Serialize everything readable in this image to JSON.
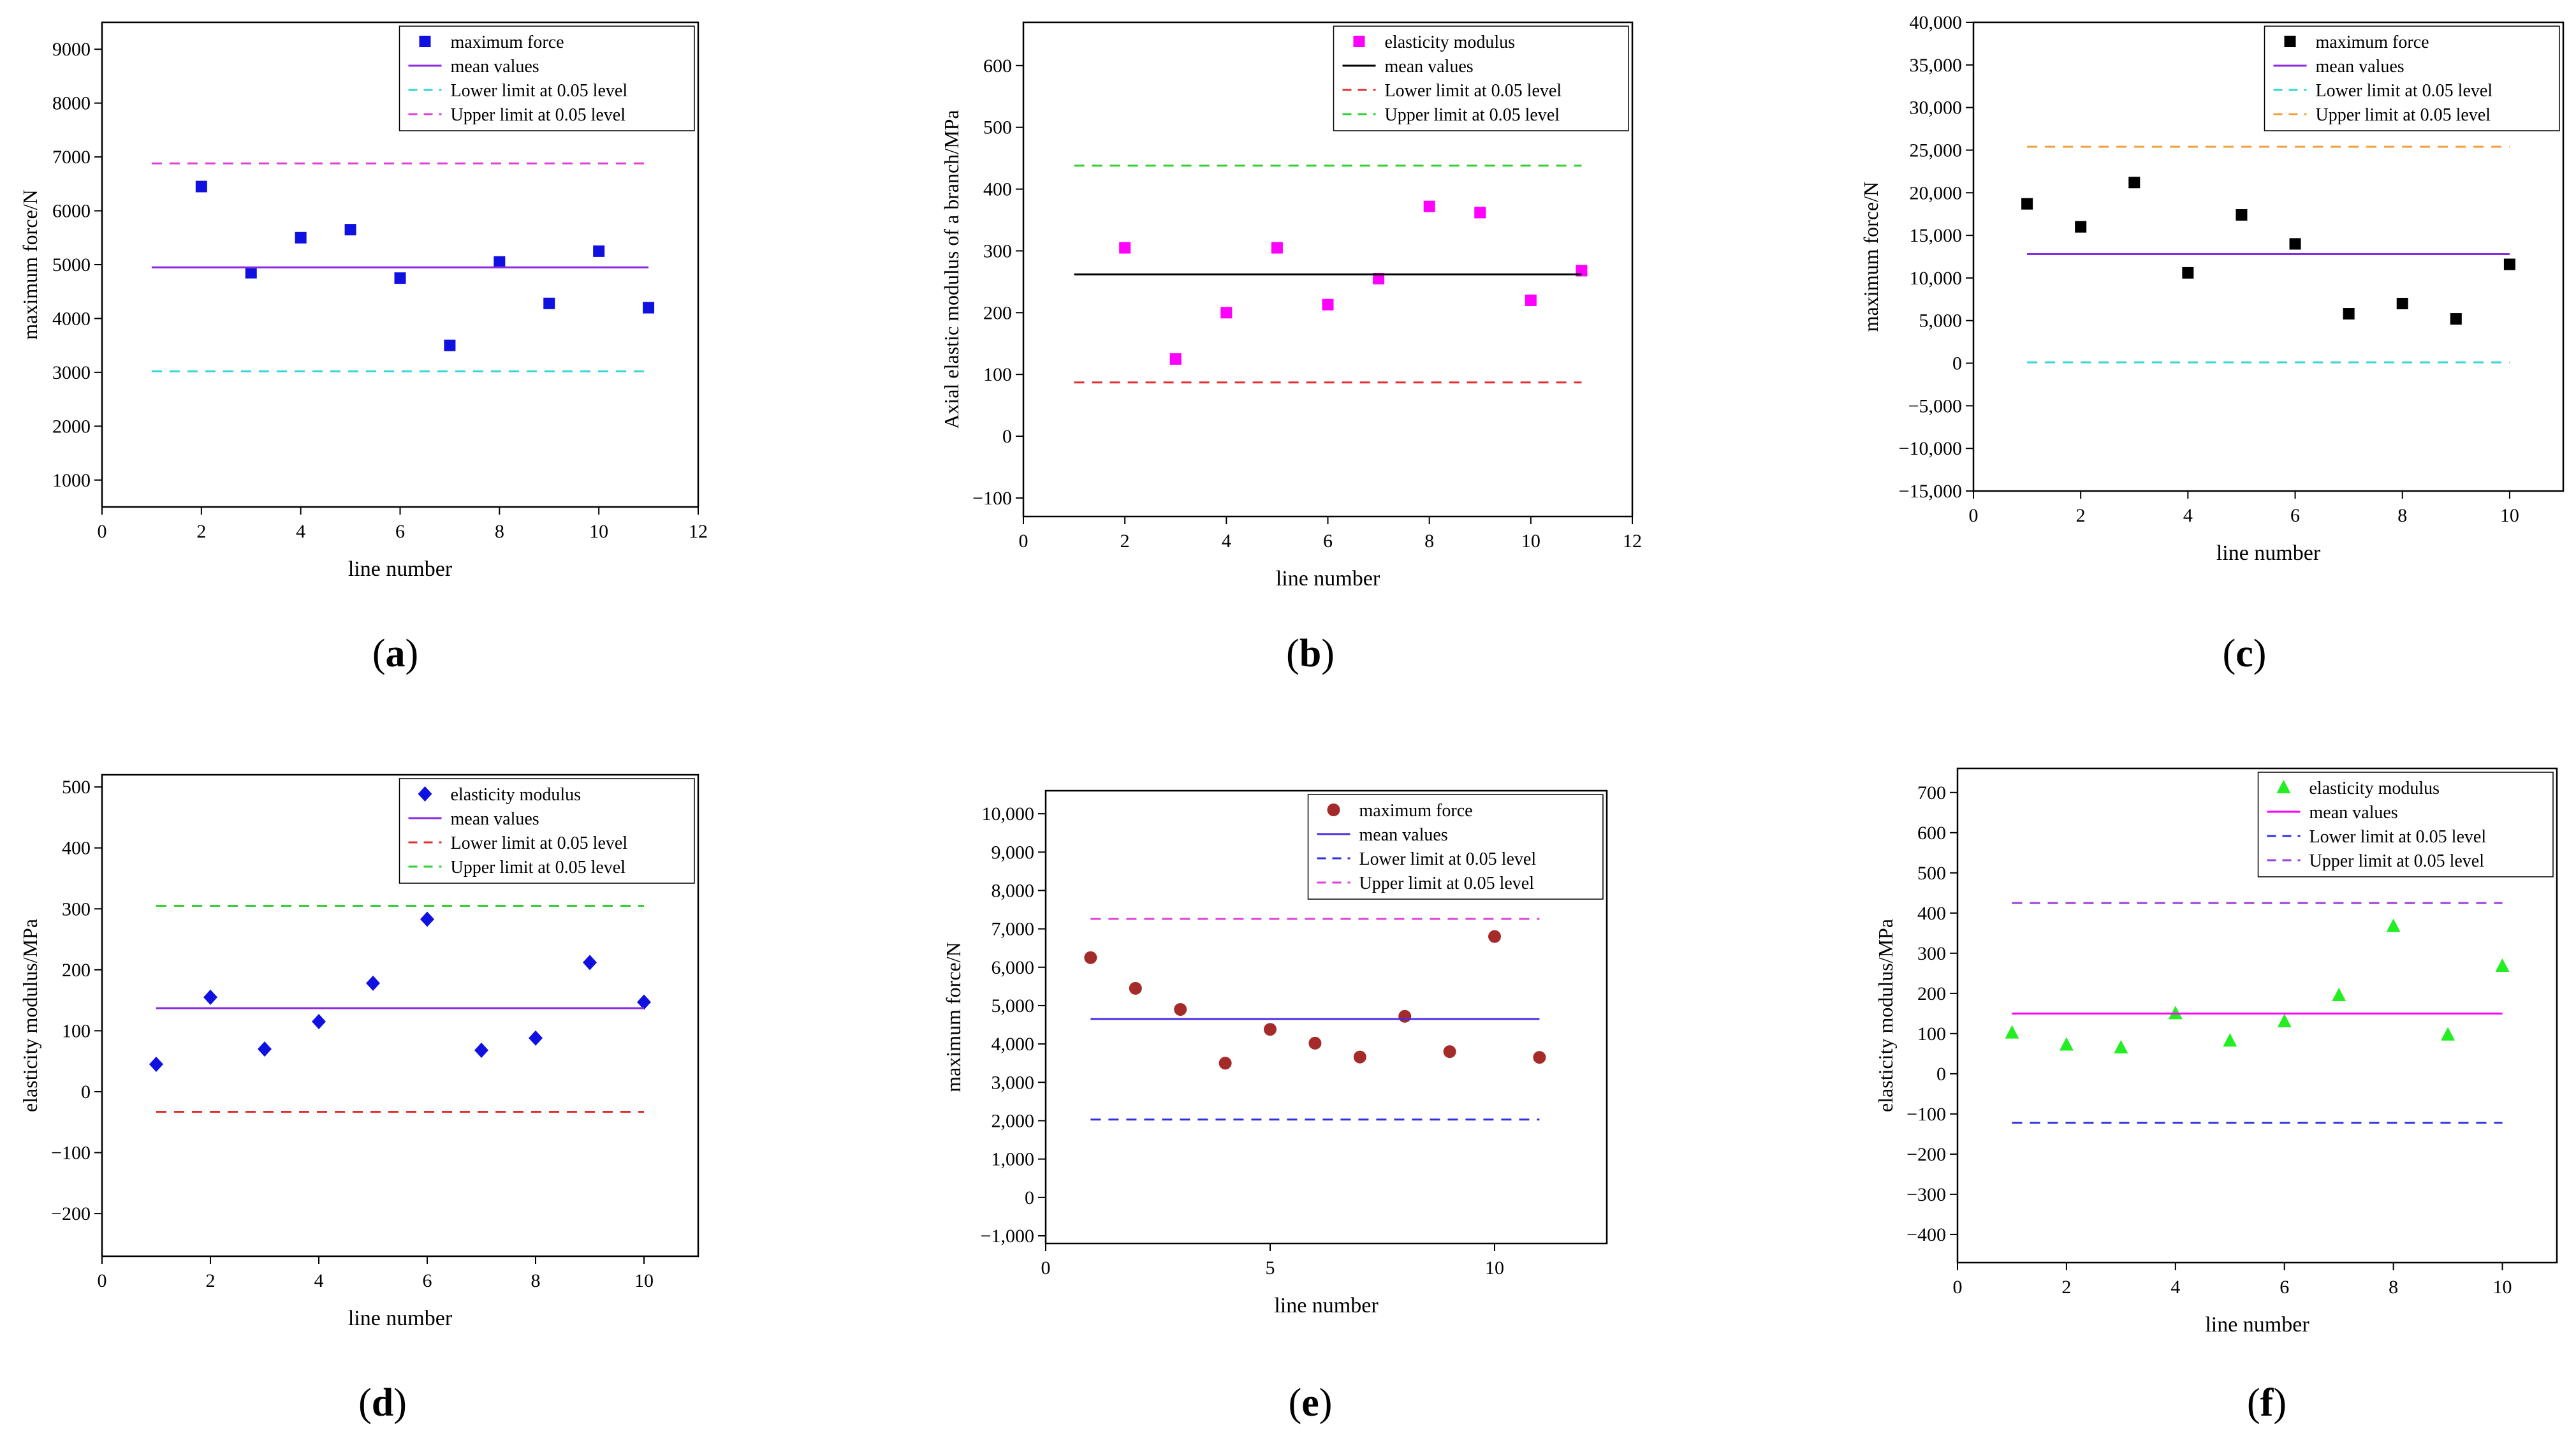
{
  "chart_data": [
    {
      "id": "a",
      "type": "scatter",
      "panel_label": "a",
      "xlabel": "line number",
      "ylabel": "maximum force/N",
      "xlim": [
        0,
        12
      ],
      "ylim": [
        500,
        9500
      ],
      "xticks": [
        0,
        2,
        4,
        6,
        8,
        10,
        12
      ],
      "yticks": [
        1000,
        2000,
        3000,
        4000,
        5000,
        6000,
        7000,
        8000,
        9000
      ],
      "tick_format": "plain",
      "legend_position": "top-right",
      "series": [
        {
          "name": "maximum force",
          "kind": "points",
          "marker": "square",
          "color": "#1010e0",
          "x": [
            2,
            3,
            4,
            5,
            6,
            7,
            8,
            9,
            10,
            11
          ],
          "y": [
            6450,
            4850,
            5500,
            5650,
            4750,
            3500,
            5050,
            4280,
            5250,
            4200
          ]
        },
        {
          "name": "mean values",
          "kind": "hline",
          "style": "solid",
          "color": "#8a2be2",
          "y": 4950,
          "x_range": [
            1,
            11
          ]
        },
        {
          "name": "Lower limit at 0.05 level",
          "kind": "hline",
          "style": "dashed",
          "color": "#33d6d6",
          "y": 3020,
          "x_range": [
            1,
            11
          ]
        },
        {
          "name": "Upper limit at 0.05 level",
          "kind": "hline",
          "style": "dashed",
          "color": "#e040d8",
          "y": 6880,
          "x_range": [
            1,
            11
          ]
        }
      ]
    },
    {
      "id": "b",
      "type": "scatter",
      "panel_label": "b",
      "xlabel": "line number",
      "ylabel": "Axial elastic modulus of a branch/MPa",
      "xlim": [
        0,
        12
      ],
      "ylim": [
        -130,
        670
      ],
      "xticks": [
        0,
        2,
        4,
        6,
        8,
        10,
        12
      ],
      "yticks": [
        -100,
        0,
        100,
        200,
        300,
        400,
        500,
        600
      ],
      "tick_format": "plain",
      "legend_position": "top-right",
      "series": [
        {
          "name": "elasticity modulus",
          "kind": "points",
          "marker": "square",
          "color": "#ff00ff",
          "x": [
            2,
            3,
            4,
            5,
            6,
            7,
            8,
            9,
            10,
            11
          ],
          "y": [
            305,
            125,
            200,
            305,
            213,
            255,
            372,
            362,
            220,
            268
          ]
        },
        {
          "name": "mean values",
          "kind": "hline",
          "style": "solid",
          "color": "#000000",
          "y": 262,
          "x_range": [
            1,
            11
          ]
        },
        {
          "name": "Lower limit at 0.05 level",
          "kind": "hline",
          "style": "dashed",
          "color": "#e03030",
          "y": 87,
          "x_range": [
            1,
            11
          ]
        },
        {
          "name": "Upper limit at 0.05 level",
          "kind": "hline",
          "style": "dashed",
          "color": "#30d030",
          "y": 438,
          "x_range": [
            1,
            11
          ]
        }
      ]
    },
    {
      "id": "c",
      "type": "scatter",
      "panel_label": "c",
      "xlabel": "line number",
      "ylabel": "maximum force/N",
      "xlim": [
        0,
        11
      ],
      "ylim": [
        -15000,
        40000
      ],
      "xticks": [
        0,
        2,
        4,
        6,
        8,
        10
      ],
      "yticks": [
        -15000,
        -10000,
        -5000,
        0,
        5000,
        10000,
        15000,
        20000,
        25000,
        30000,
        35000,
        40000
      ],
      "tick_format": "comma",
      "legend_position": "top-right",
      "series": [
        {
          "name": "maximum force",
          "kind": "points",
          "marker": "square",
          "color": "#000000",
          "x": [
            1,
            2,
            3,
            4,
            5,
            6,
            7,
            8,
            9,
            10
          ],
          "y": [
            18700,
            16000,
            21200,
            10600,
            17400,
            14000,
            5800,
            7000,
            5200,
            11600
          ]
        },
        {
          "name": "mean values",
          "kind": "hline",
          "style": "solid",
          "color": "#8a2be2",
          "y": 12800,
          "x_range": [
            1,
            10
          ]
        },
        {
          "name": "Lower limit at 0.05 level",
          "kind": "hline",
          "style": "dashed",
          "color": "#33d6d6",
          "y": 100,
          "x_range": [
            1,
            10
          ]
        },
        {
          "name": "Upper limit at 0.05 level",
          "kind": "hline",
          "style": "dashed",
          "color": "#f0a040",
          "y": 25400,
          "x_range": [
            1,
            10
          ]
        }
      ]
    },
    {
      "id": "d",
      "type": "scatter",
      "panel_label": "d",
      "xlabel": "line number",
      "ylabel": "elasticity modulus/MPa",
      "xlim": [
        0,
        11
      ],
      "ylim": [
        -270,
        520
      ],
      "xticks": [
        0,
        2,
        4,
        6,
        8,
        10
      ],
      "yticks": [
        -200,
        -100,
        0,
        100,
        200,
        300,
        400,
        500
      ],
      "tick_format": "plain",
      "legend_position": "top-right",
      "series": [
        {
          "name": "elasticity modulus",
          "kind": "points",
          "marker": "diamond",
          "color": "#1010e0",
          "x": [
            1,
            2,
            3,
            4,
            5,
            6,
            7,
            8,
            9,
            10
          ],
          "y": [
            45,
            155,
            70,
            115,
            178,
            283,
            68,
            88,
            212,
            147
          ]
        },
        {
          "name": "mean values",
          "kind": "hline",
          "style": "solid",
          "color": "#8a2be2",
          "y": 137,
          "x_range": [
            1,
            10
          ]
        },
        {
          "name": "Lower limit at 0.05 level",
          "kind": "hline",
          "style": "dashed",
          "color": "#e03030",
          "y": -33,
          "x_range": [
            1,
            10
          ]
        },
        {
          "name": "Upper limit at 0.05 level",
          "kind": "hline",
          "style": "dashed",
          "color": "#30d030",
          "y": 305,
          "x_range": [
            1,
            10
          ]
        }
      ]
    },
    {
      "id": "e",
      "type": "scatter",
      "panel_label": "e",
      "xlabel": "line number",
      "ylabel": "maximum force/N",
      "xlim": [
        0,
        12.5
      ],
      "ylim": [
        -1200,
        10600
      ],
      "xticks": [
        0,
        5,
        10
      ],
      "yticks": [
        -1000,
        0,
        1000,
        2000,
        3000,
        4000,
        5000,
        6000,
        7000,
        8000,
        9000,
        10000
      ],
      "tick_format": "comma",
      "legend_position": "top-right",
      "series": [
        {
          "name": "maximum force",
          "kind": "points",
          "marker": "circle",
          "color": "#a52a2a",
          "x": [
            1,
            2,
            3,
            4,
            5,
            6,
            7,
            8,
            9,
            10,
            11
          ],
          "y": [
            6250,
            5450,
            4900,
            3500,
            4380,
            4020,
            3660,
            4720,
            3800,
            6800,
            3650
          ]
        },
        {
          "name": "mean values",
          "kind": "hline",
          "style": "solid",
          "color": "#4b2be0",
          "y": 4650,
          "x_range": [
            1,
            11
          ]
        },
        {
          "name": "Lower limit at 0.05 level",
          "kind": "hline",
          "style": "dashed",
          "color": "#3030e0",
          "y": 2030,
          "x_range": [
            1,
            11
          ]
        },
        {
          "name": "Upper limit at 0.05 level",
          "kind": "hline",
          "style": "dashed",
          "color": "#e040d8",
          "y": 7260,
          "x_range": [
            1,
            11
          ]
        }
      ]
    },
    {
      "id": "f",
      "type": "scatter",
      "panel_label": "f",
      "xlabel": "line number",
      "ylabel": "elasticity modulus/MPa",
      "xlim": [
        0,
        11
      ],
      "ylim": [
        -470,
        760
      ],
      "xticks": [
        0,
        2,
        4,
        6,
        8,
        10
      ],
      "yticks": [
        -400,
        -300,
        -200,
        -100,
        0,
        100,
        200,
        300,
        400,
        500,
        600,
        700
      ],
      "tick_format": "plain",
      "legend_position": "top-right",
      "series": [
        {
          "name": "elasticity modulus",
          "kind": "points",
          "marker": "triangle",
          "color": "#22ee22",
          "x": [
            1,
            2,
            3,
            4,
            5,
            6,
            7,
            8,
            9,
            10
          ],
          "y": [
            102,
            72,
            65,
            150,
            82,
            130,
            195,
            367,
            97,
            268
          ]
        },
        {
          "name": "mean values",
          "kind": "hline",
          "style": "solid",
          "color": "#ff00ff",
          "y": 150,
          "x_range": [
            1,
            10
          ]
        },
        {
          "name": "Lower limit at 0.05 level",
          "kind": "hline",
          "style": "dashed",
          "color": "#3030e0",
          "y": -122,
          "x_range": [
            1,
            10
          ]
        },
        {
          "name": "Upper limit at 0.05 level",
          "kind": "hline",
          "style": "dashed",
          "color": "#9a40e0",
          "y": 425,
          "x_range": [
            1,
            10
          ]
        }
      ]
    }
  ]
}
